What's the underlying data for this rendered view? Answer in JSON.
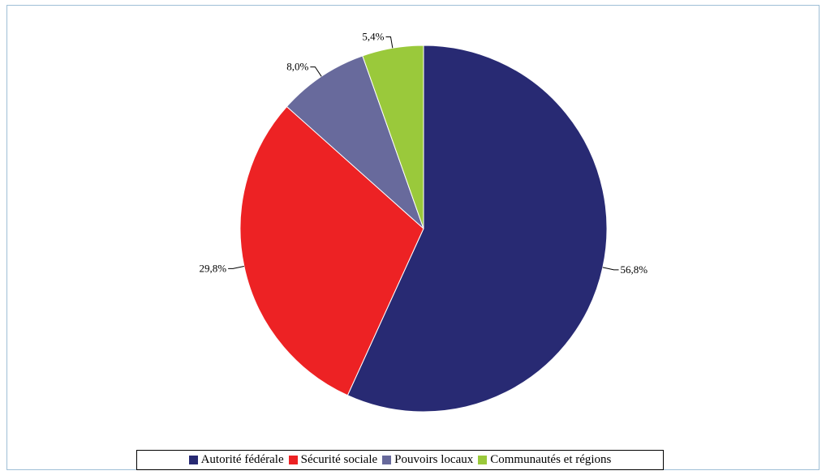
{
  "chart_data": {
    "type": "pie",
    "title": "",
    "start_angle_deg": 0,
    "direction": "clockwise",
    "legend_position": "bottom",
    "slices": [
      {
        "name": "Autorité fédérale",
        "value": 56.8,
        "label": "56,8%",
        "color": "#282a73"
      },
      {
        "name": "Sécurité sociale",
        "value": 29.8,
        "label": "29,8%",
        "color": "#ed2224"
      },
      {
        "name": "Pouvoirs locaux",
        "value": 8.0,
        "label": "8,0%",
        "color": "#686a9c"
      },
      {
        "name": "Communautés et régions",
        "value": 5.4,
        "label": "5,4%",
        "color": "#9ac93b"
      }
    ]
  }
}
